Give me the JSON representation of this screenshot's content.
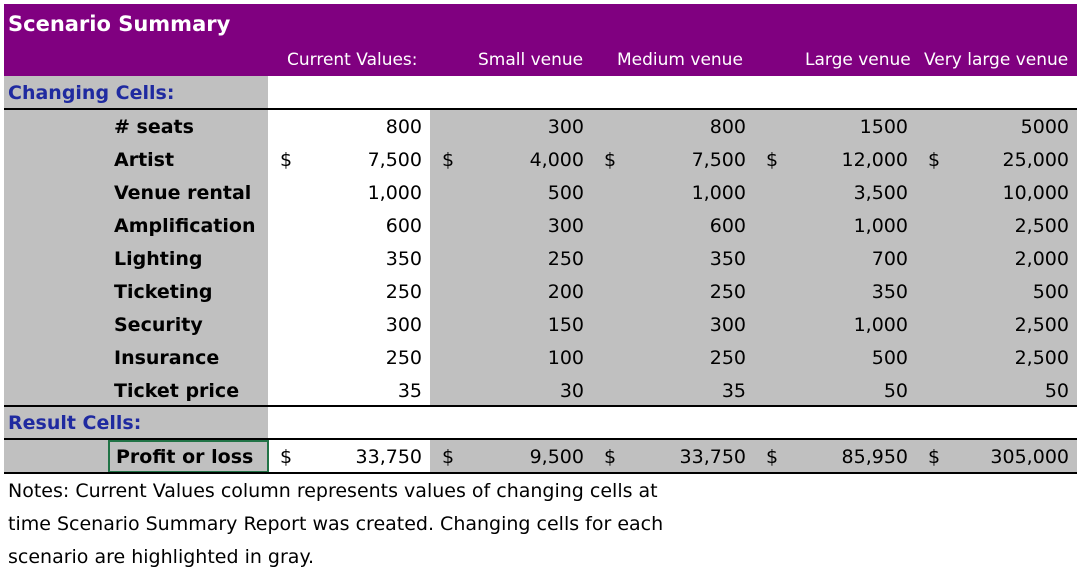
{
  "header": {
    "title": "Scenario Summary",
    "columns": [
      "Current Values:",
      "Small venue",
      "Medium venue",
      "Large venue",
      "Very large venue"
    ]
  },
  "changing_label": "Changing Cells:",
  "result_label": "Result Cells:",
  "rows": [
    {
      "label": "# seats",
      "dollar": "",
      "values": [
        "800",
        "300",
        "800",
        "1500",
        "5000"
      ]
    },
    {
      "label": "Artist",
      "dollar": "$",
      "values": [
        "7,500",
        "4,000",
        "7,500",
        "12,000",
        "25,000"
      ]
    },
    {
      "label": "Venue rental",
      "dollar": "",
      "values": [
        "1,000",
        "500",
        "1,000",
        "3,500",
        "10,000"
      ]
    },
    {
      "label": "Amplification",
      "dollar": "",
      "values": [
        "600",
        "300",
        "600",
        "1,000",
        "2,500"
      ]
    },
    {
      "label": "Lighting",
      "dollar": "",
      "values": [
        "350",
        "250",
        "350",
        "700",
        "2,000"
      ]
    },
    {
      "label": "Ticketing",
      "dollar": "",
      "values": [
        "250",
        "200",
        "250",
        "350",
        "500"
      ]
    },
    {
      "label": "Security",
      "dollar": "",
      "values": [
        "300",
        "150",
        "300",
        "1,000",
        "2,500"
      ]
    },
    {
      "label": "Insurance",
      "dollar": "",
      "values": [
        "250",
        "100",
        "250",
        "500",
        "2,500"
      ]
    },
    {
      "label": "Ticket price",
      "dollar": "",
      "values": [
        "35",
        "30",
        "35",
        "50",
        "50"
      ]
    }
  ],
  "result": {
    "label": "Profit or loss",
    "dollar": "$",
    "values": [
      "33,750",
      "9,500",
      "33,750",
      "85,950",
      "305,000"
    ]
  },
  "notes": [
    "Notes:  Current Values column represents values of changing cells at",
    "time Scenario Summary Report was created.  Changing cells for each",
    "scenario are highlighted in gray."
  ],
  "colors": {
    "header": "#800080",
    "highlight": "#c0c0c0",
    "section_text": "#1f2aa0",
    "selected_border": "#217346"
  }
}
